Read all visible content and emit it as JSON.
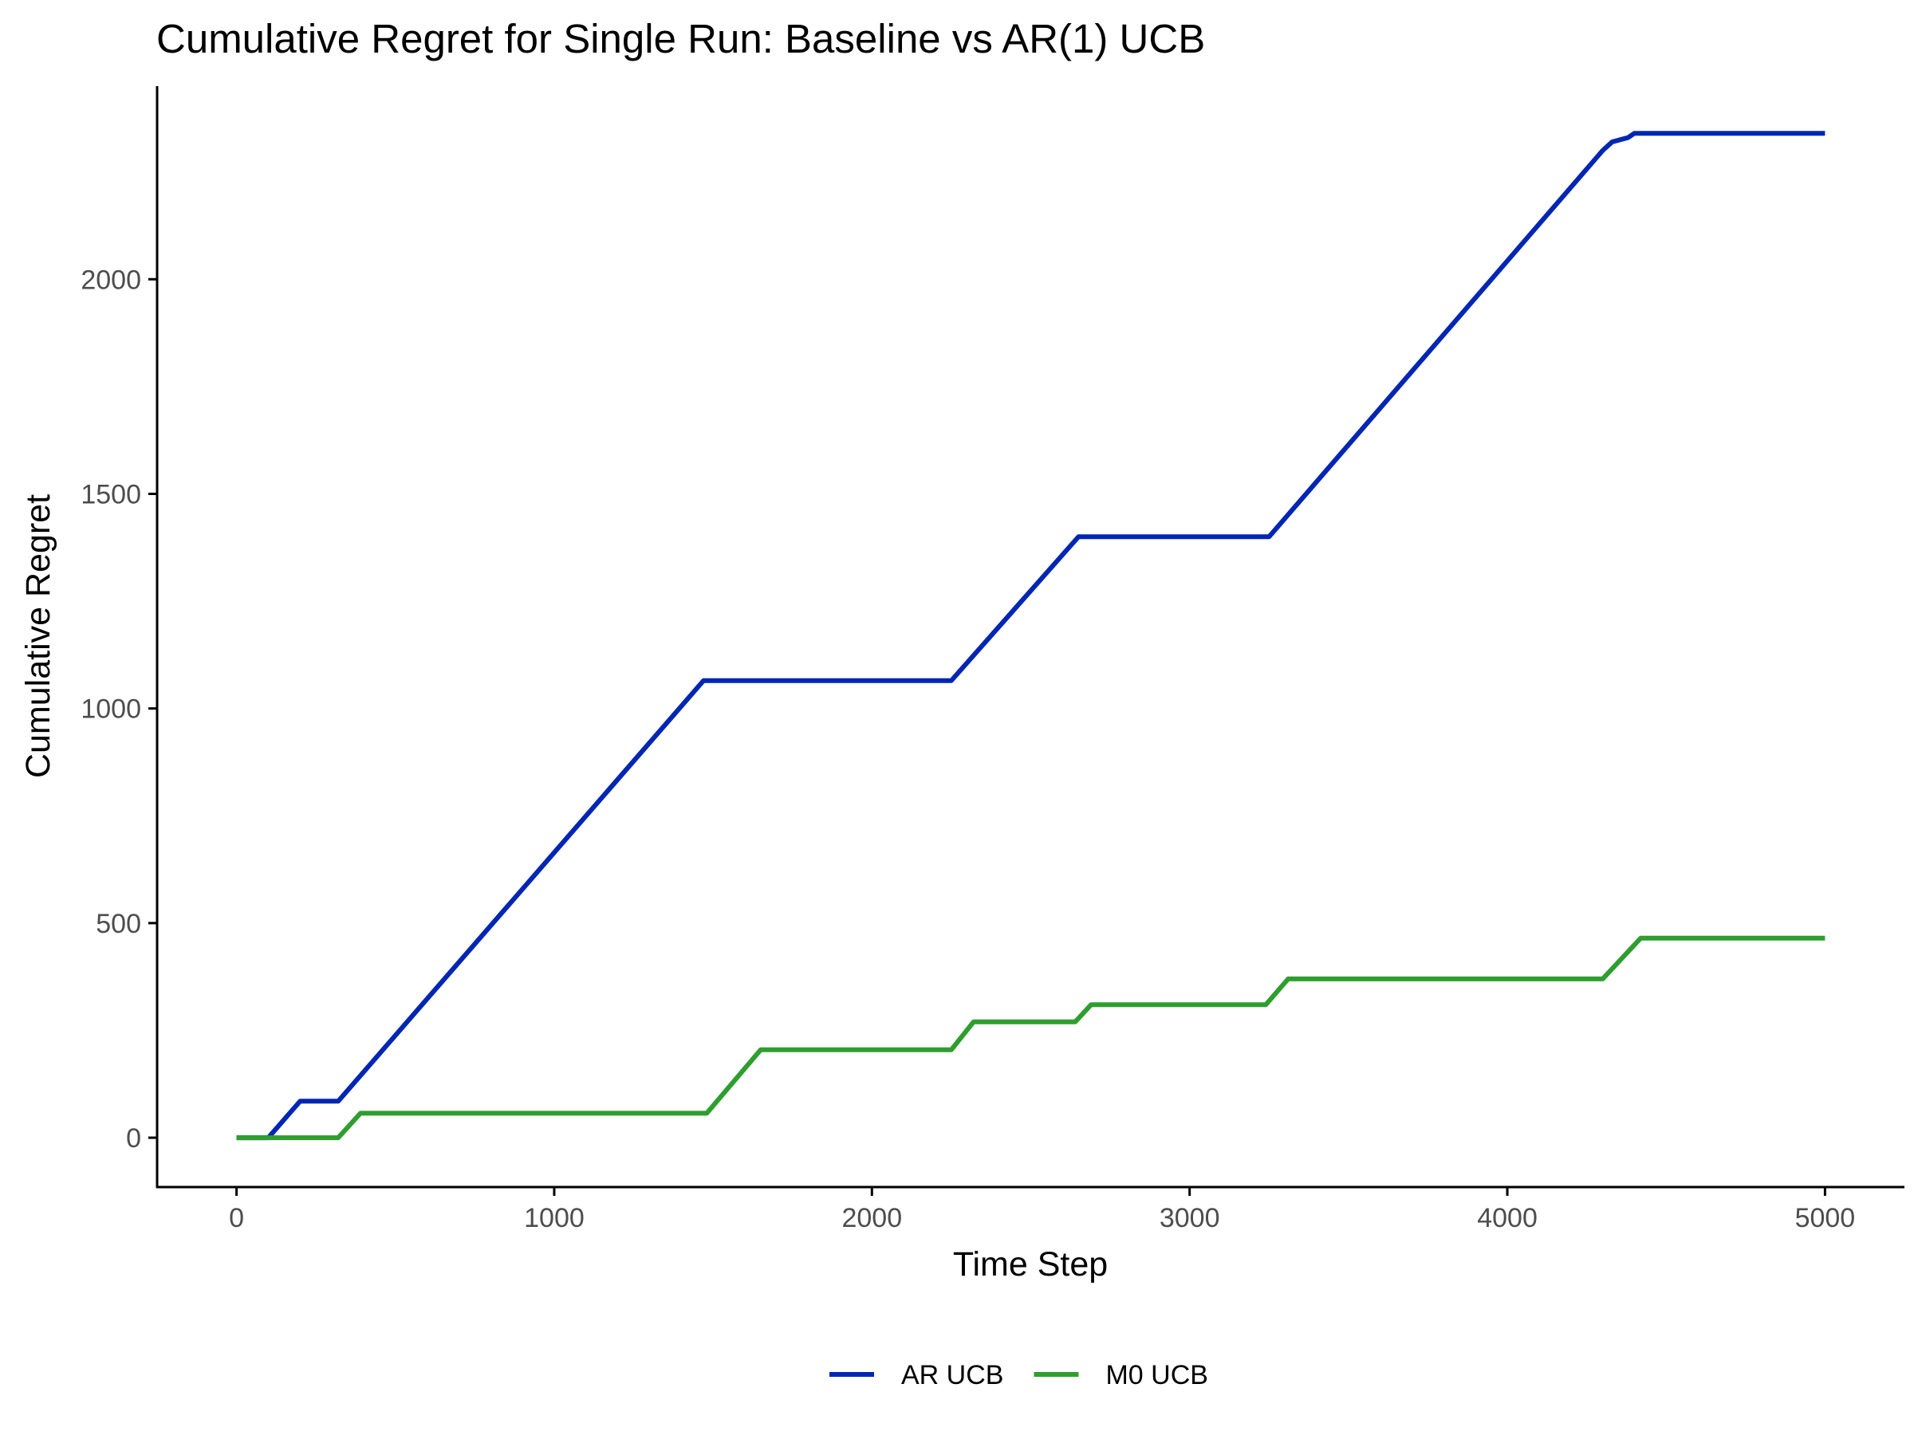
{
  "chart_data": {
    "type": "line",
    "title": "Cumulative Regret for Single Run: Baseline vs AR(1) UCB",
    "xlabel": "Time Step",
    "ylabel": "Cumulative Regret",
    "xlim": [
      -250,
      5250
    ],
    "ylim": [
      -115,
      2450
    ],
    "x_ticks": [
      0,
      1000,
      2000,
      3000,
      4000,
      5000
    ],
    "y_ticks": [
      0,
      500,
      1000,
      1500,
      2000
    ],
    "grid": false,
    "legend_position": "bottom",
    "series": [
      {
        "name": "AR UCB",
        "color": "#0026b3",
        "x": [
          0,
          100,
          200,
          320,
          1470,
          2250,
          2650,
          3250,
          4300,
          4330,
          4380,
          4400,
          5000
        ],
        "y": [
          0,
          0,
          85,
          85,
          1065,
          1065,
          1400,
          1400,
          2300,
          2320,
          2330,
          2340,
          2340
        ]
      },
      {
        "name": "M0 UCB",
        "color": "#2e9e2e",
        "x": [
          0,
          320,
          390,
          1480,
          1650,
          2250,
          2320,
          2640,
          2690,
          3240,
          3310,
          4300,
          4420,
          5000
        ],
        "y": [
          0,
          0,
          57,
          57,
          205,
          205,
          270,
          270,
          310,
          310,
          370,
          370,
          465,
          465
        ]
      }
    ]
  }
}
